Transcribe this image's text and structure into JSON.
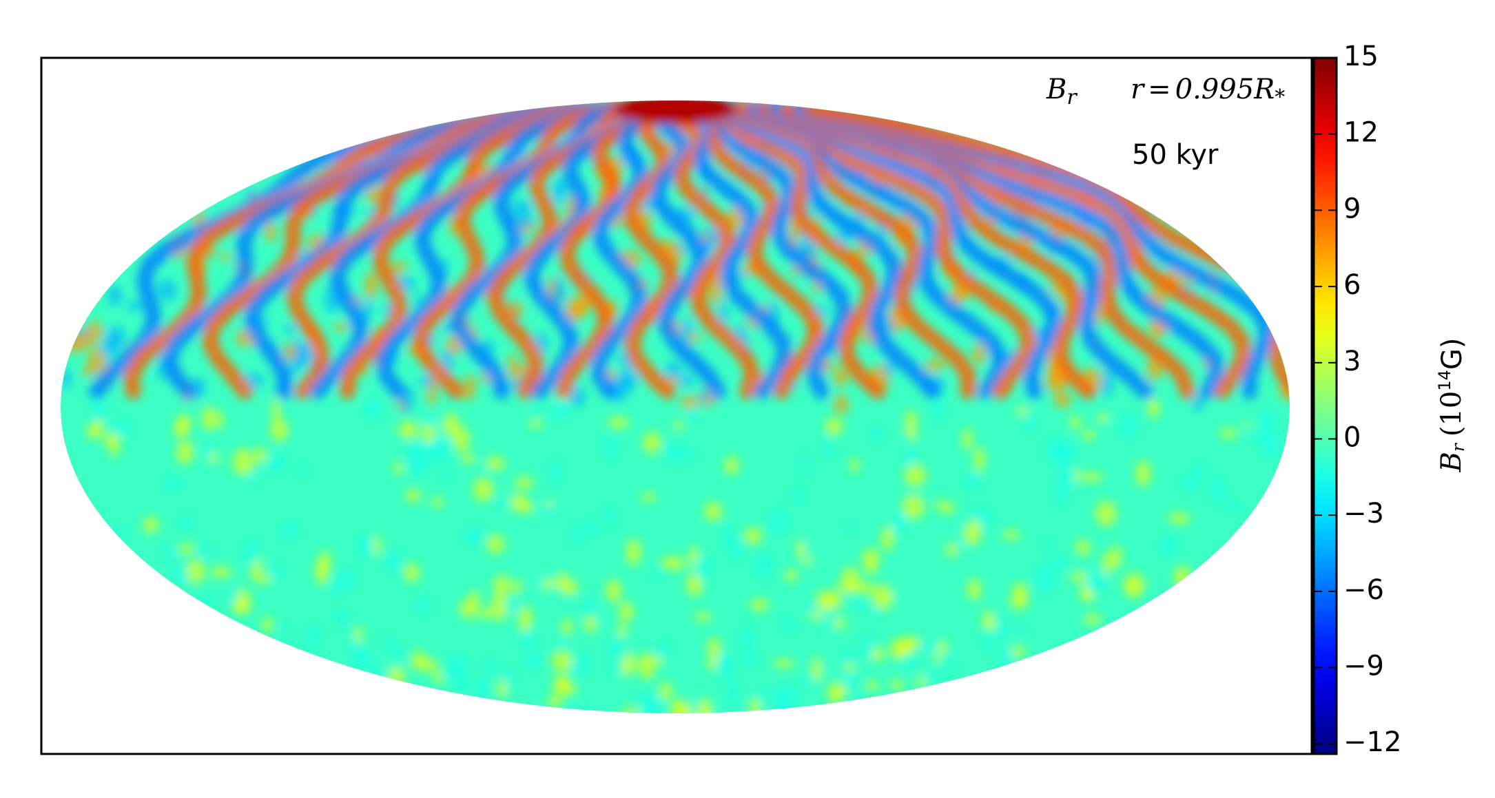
{
  "chart_data": {
    "type": "map",
    "projection": "mollweide",
    "colormap": "jet",
    "clim": [
      -12.4,
      15
    ],
    "cticks": [
      {
        "value": -12,
        "label": "−12"
      },
      {
        "value": -9,
        "label": "−9"
      },
      {
        "value": -6,
        "label": "−6"
      },
      {
        "value": -3,
        "label": "−3"
      },
      0,
      3,
      6,
      9,
      12,
      15
    ],
    "colorbar_label": {
      "symbol": "B",
      "sub": "r",
      "unit_open": "(10",
      "exp": "14",
      "unit_close": "G)"
    },
    "annotations": {
      "field": {
        "symbol": "B",
        "sub": "r"
      },
      "radius": {
        "lhs": "r",
        "eq": "=",
        "num": "0.995",
        "R": "R",
        "sub": "*"
      },
      "time": "50 kyr"
    }
  }
}
